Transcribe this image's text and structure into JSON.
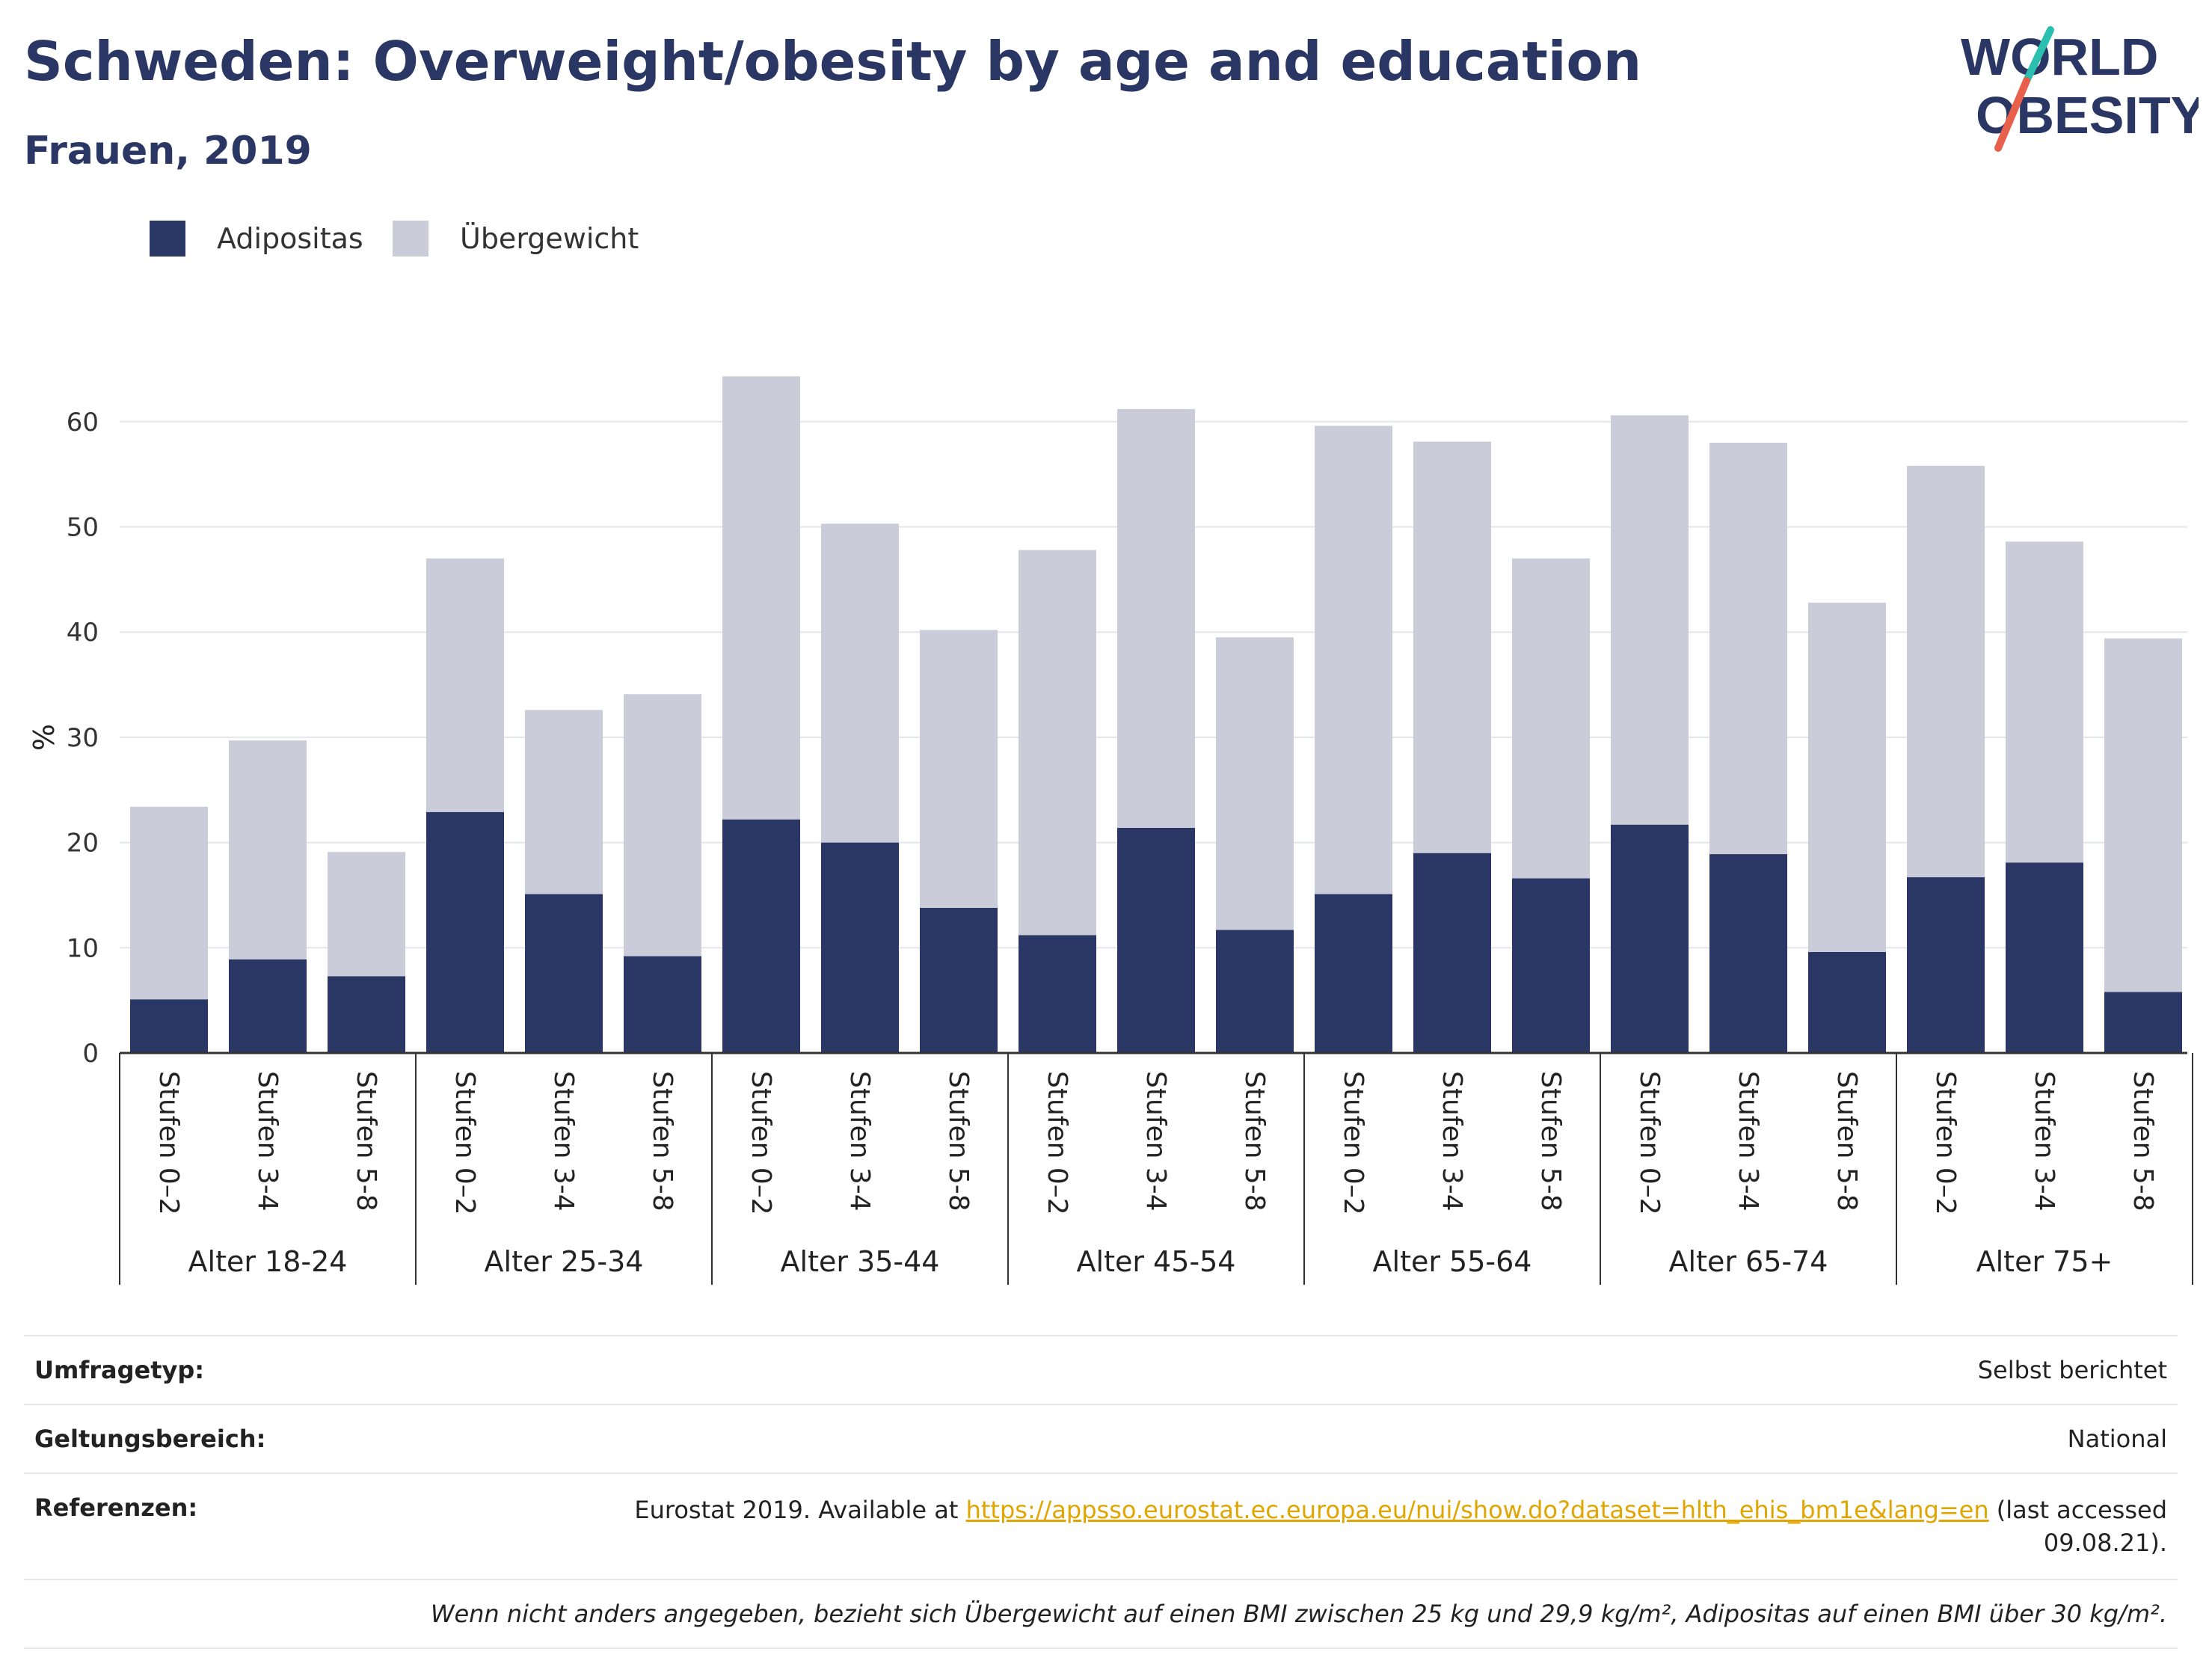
{
  "header": {
    "title": "Schweden: Overweight/obesity by age and education",
    "subtitle": "Frauen, 2019"
  },
  "logo": {
    "line1": "WORLD",
    "line2": "OBESITY",
    "colors": {
      "text": "#2a3663",
      "slash_top": "#2bbfb0",
      "slash_bottom": "#e8604c"
    }
  },
  "chart_data": {
    "type": "bar",
    "stacked": true,
    "ylabel": "%",
    "xlabel": "",
    "ylim": [
      0,
      65
    ],
    "yticks": [
      0,
      10,
      20,
      30,
      40,
      50,
      60
    ],
    "grid": true,
    "legend_position": "top-left",
    "groups": [
      "Alter 18-24",
      "Alter 25-34",
      "Alter 35-44",
      "Alter 45-54",
      "Alter 55-64",
      "Alter 65-74",
      "Alter 75+"
    ],
    "subcategories": [
      "Stufen 0–2",
      "Stufen 3-4",
      "Stufen 5-8"
    ],
    "series": [
      {
        "name": "Adipositas",
        "color": "#2a3663",
        "values": [
          5.1,
          8.9,
          7.3,
          22.9,
          15.1,
          9.2,
          22.2,
          20.0,
          13.8,
          11.2,
          21.4,
          11.7,
          15.1,
          19.0,
          16.6,
          21.7,
          18.9,
          9.6,
          16.7,
          18.1,
          5.8
        ]
      },
      {
        "name": "Übergewicht",
        "color": "#cacdd9",
        "values": [
          18.3,
          20.8,
          11.8,
          24.1,
          17.5,
          24.9,
          42.1,
          30.3,
          26.4,
          36.6,
          39.8,
          27.8,
          44.5,
          39.1,
          30.4,
          38.9,
          39.1,
          33.2,
          39.1,
          30.5,
          33.6
        ]
      }
    ]
  },
  "info": {
    "survey_type": {
      "label": "Umfragetyp:",
      "value": "Selbst berichtet"
    },
    "coverage": {
      "label": "Geltungsbereich:",
      "value": "National"
    },
    "references": {
      "label": "Referenzen:",
      "prefix": "Eurostat 2019. Available at ",
      "link": "https://appsso.eurostat.ec.europa.eu/nui/show.do?dataset=hlth_ehis_bm1e&lang=en",
      "suffix": " (last accessed 09.08.21)."
    },
    "note": "Wenn nicht anders angegeben, bezieht sich Übergewicht auf einen BMI zwischen 25 kg und 29,9 kg/m², Adipositas auf einen BMI über 30 kg/m²."
  }
}
